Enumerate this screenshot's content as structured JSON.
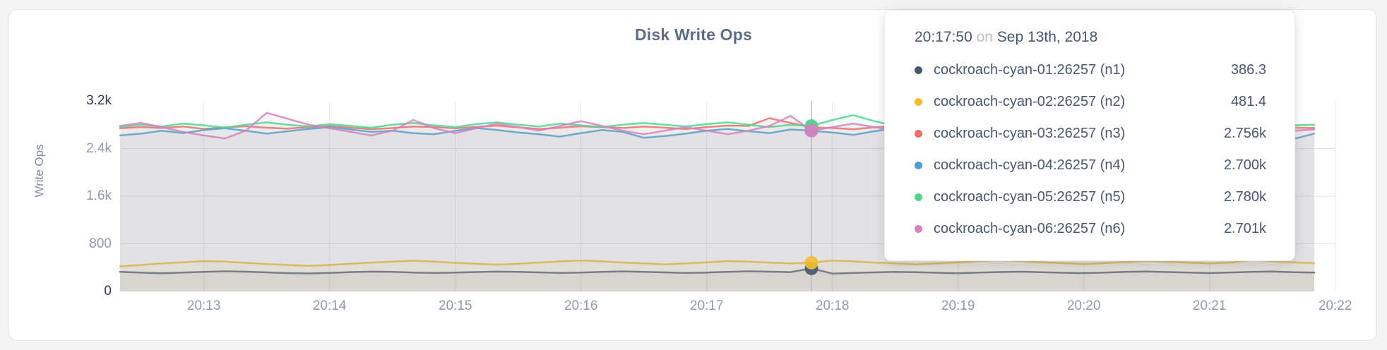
{
  "page": {
    "background": "#f4f4f5"
  },
  "chart_data": {
    "type": "line",
    "title": "Disk Write Ops",
    "xlabel": "",
    "ylabel": "Write Ops",
    "ylim": [
      0,
      3200
    ],
    "x_start": "20:12:20",
    "x_step_seconds": 10,
    "x_range": [
      "20:12:20",
      "20:22:00"
    ],
    "grid": "horizontal at 800/1600/2400, vertical each minute",
    "legend_position": "tooltip",
    "y_ticks": [
      {
        "label": "3.2k",
        "value": 3200
      },
      {
        "label": "2.4k",
        "value": 2400
      },
      {
        "label": "1.6k",
        "value": 1600
      },
      {
        "label": "800",
        "value": 800
      },
      {
        "label": "0",
        "value": 0
      }
    ],
    "x_tick_labels": [
      "20:13",
      "20:14",
      "20:15",
      "20:16",
      "20:17",
      "20:18",
      "20:19",
      "20:20",
      "20:21",
      "20:22"
    ],
    "times": [
      "20:12:20",
      "20:12:30",
      "20:12:40",
      "20:12:50",
      "20:13:00",
      "20:13:10",
      "20:13:20",
      "20:13:30",
      "20:13:40",
      "20:13:50",
      "20:14:00",
      "20:14:10",
      "20:14:20",
      "20:14:30",
      "20:14:40",
      "20:14:50",
      "20:15:00",
      "20:15:10",
      "20:15:20",
      "20:15:30",
      "20:15:40",
      "20:15:50",
      "20:16:00",
      "20:16:10",
      "20:16:20",
      "20:16:30",
      "20:16:40",
      "20:16:50",
      "20:17:00",
      "20:17:10",
      "20:17:20",
      "20:17:30",
      "20:17:40",
      "20:17:50",
      "20:18:00",
      "20:18:10",
      "20:18:20",
      "20:18:30",
      "20:18:40",
      "20:18:50",
      "20:19:00",
      "20:19:10",
      "20:19:20",
      "20:19:30",
      "20:19:40",
      "20:19:50",
      "20:20:00",
      "20:20:10",
      "20:20:20",
      "20:20:30",
      "20:20:40",
      "20:20:50",
      "20:21:00",
      "20:21:10",
      "20:21:20",
      "20:21:30",
      "20:21:40",
      "20:21:50"
    ],
    "series": [
      {
        "name": "cockroach-cyan-01:26257 (n1)",
        "color": "#475872",
        "values": [
          330,
          315,
          305,
          318,
          330,
          338,
          332,
          320,
          308,
          302,
          312,
          325,
          333,
          328,
          318,
          310,
          316,
          326,
          333,
          328,
          320,
          312,
          318,
          328,
          336,
          330,
          320,
          312,
          318,
          330,
          338,
          332,
          325,
          386.3,
          300,
          310,
          320,
          328,
          324,
          314,
          306,
          316,
          326,
          332,
          324,
          314,
          308,
          318,
          328,
          334,
          326,
          316,
          309,
          319,
          329,
          334,
          324,
          316
        ]
      },
      {
        "name": "cockroach-cyan-02:26257 (n2)",
        "color": "#F2BE2C",
        "values": [
          420,
          445,
          470,
          490,
          510,
          500,
          480,
          460,
          445,
          430,
          445,
          465,
          485,
          500,
          515,
          500,
          480,
          465,
          450,
          465,
          485,
          505,
          520,
          505,
          485,
          470,
          455,
          470,
          490,
          510,
          500,
          485,
          470,
          481.4,
          520,
          505,
          485,
          470,
          455,
          470,
          490,
          510,
          525,
          510,
          490,
          475,
          460,
          475,
          495,
          515,
          500,
          485,
          470,
          485,
          530,
          510,
          490,
          475
        ]
      },
      {
        "name": "cockroach-cyan-03:26257 (n3)",
        "color": "#F16969",
        "values": [
          2740,
          2760,
          2745,
          2770,
          2730,
          2755,
          2775,
          2750,
          2735,
          2760,
          2780,
          2750,
          2725,
          2745,
          2770,
          2760,
          2740,
          2765,
          2785,
          2755,
          2730,
          2750,
          2775,
          2760,
          2745,
          2770,
          2750,
          2730,
          2760,
          2785,
          2780,
          2910,
          2830,
          2756,
          2745,
          2725,
          2755,
          2780,
          2760,
          2740,
          2765,
          2750,
          2730,
          2755,
          2775,
          2745,
          2735,
          2760,
          2780,
          2755,
          2740,
          2765,
          2745,
          2730,
          2760,
          2775,
          2750,
          2745
        ]
      },
      {
        "name": "cockroach-cyan-04:26257 (n4)",
        "color": "#4E9FD1",
        "values": [
          2620,
          2650,
          2700,
          2660,
          2710,
          2740,
          2700,
          2650,
          2690,
          2730,
          2760,
          2720,
          2680,
          2700,
          2660,
          2640,
          2700,
          2745,
          2710,
          2670,
          2640,
          2600,
          2660,
          2710,
          2680,
          2580,
          2610,
          2650,
          2700,
          2730,
          2690,
          2660,
          2720,
          2700,
          2670,
          2630,
          2690,
          2740,
          2700,
          2650,
          2700,
          2730,
          2680,
          2640,
          2690,
          2720,
          2700,
          2660,
          2630,
          2690,
          2730,
          2700,
          2650,
          2700,
          2740,
          2710,
          2560,
          2650
        ]
      },
      {
        "name": "cockroach-cyan-05:26257 (n5)",
        "color": "#49D990",
        "values": [
          2760,
          2800,
          2770,
          2820,
          2790,
          2750,
          2800,
          2840,
          2800,
          2770,
          2810,
          2780,
          2750,
          2800,
          2830,
          2790,
          2760,
          2810,
          2840,
          2800,
          2770,
          2820,
          2790,
          2760,
          2800,
          2830,
          2800,
          2770,
          2810,
          2840,
          2800,
          2760,
          2800,
          2780,
          2880,
          2960,
          2860,
          2780,
          2810,
          2840,
          2800,
          2770,
          2810,
          2830,
          2790,
          2760,
          2800,
          2830,
          2800,
          2770,
          2810,
          2840,
          2800,
          2770,
          2800,
          2830,
          2790,
          2800
        ]
      },
      {
        "name": "cockroach-cyan-06:26257 (n6)",
        "color": "#D77FBF",
        "values": [
          2780,
          2830,
          2760,
          2680,
          2620,
          2570,
          2700,
          3000,
          2900,
          2800,
          2740,
          2680,
          2620,
          2700,
          2880,
          2740,
          2660,
          2740,
          2820,
          2760,
          2700,
          2780,
          2860,
          2780,
          2700,
          2640,
          2700,
          2760,
          2700,
          2640,
          2700,
          2780,
          2950,
          2701,
          2760,
          2820,
          2760,
          2700,
          2640,
          2700,
          2760,
          2820,
          2880,
          2960,
          2880,
          2780,
          2700,
          2640,
          2700,
          2760,
          2700,
          2640,
          2700,
          2780,
          2700,
          2650,
          2700,
          2720
        ]
      }
    ]
  },
  "tooltip": {
    "time": "20:17:50",
    "on_word": "on",
    "date": "Sep 13th, 2018",
    "rows": [
      {
        "name": "cockroach-cyan-01:26257 (n1)",
        "value": "386.3",
        "color": "#475872"
      },
      {
        "name": "cockroach-cyan-02:26257 (n2)",
        "value": "481.4",
        "color": "#F2BE2C"
      },
      {
        "name": "cockroach-cyan-03:26257 (n3)",
        "value": "2.756k",
        "color": "#F16969"
      },
      {
        "name": "cockroach-cyan-04:26257 (n4)",
        "value": "2.700k",
        "color": "#4E9FD1"
      },
      {
        "name": "cockroach-cyan-05:26257 (n5)",
        "value": "2.780k",
        "color": "#49D990"
      },
      {
        "name": "cockroach-cyan-06:26257 (n6)",
        "value": "2.701k",
        "color": "#D77FBF"
      }
    ]
  }
}
